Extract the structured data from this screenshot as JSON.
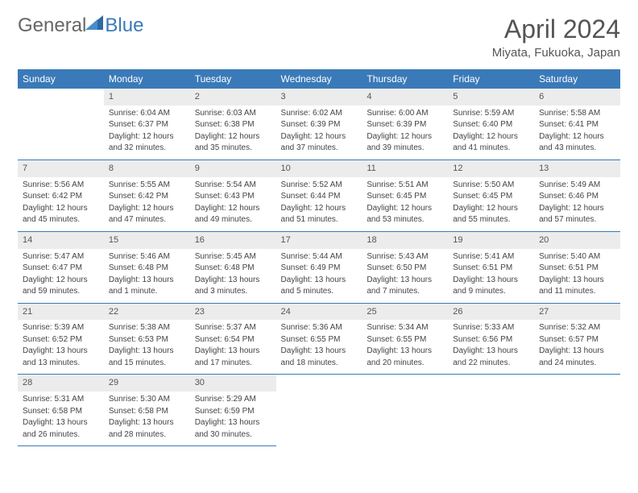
{
  "logo": {
    "part1": "General",
    "part2": "Blue"
  },
  "title": "April 2024",
  "location": "Miyata, Fukuoka, Japan",
  "colors": {
    "header_bg": "#3a7ab8",
    "header_text": "#ffffff",
    "daynum_bg": "#ececec",
    "border": "#3a7ab8",
    "text": "#444444",
    "title_text": "#555555"
  },
  "weekdays": [
    "Sunday",
    "Monday",
    "Tuesday",
    "Wednesday",
    "Thursday",
    "Friday",
    "Saturday"
  ],
  "weeks": [
    [
      null,
      {
        "n": "1",
        "sr": "Sunrise: 6:04 AM",
        "ss": "Sunset: 6:37 PM",
        "d1": "Daylight: 12 hours",
        "d2": "and 32 minutes."
      },
      {
        "n": "2",
        "sr": "Sunrise: 6:03 AM",
        "ss": "Sunset: 6:38 PM",
        "d1": "Daylight: 12 hours",
        "d2": "and 35 minutes."
      },
      {
        "n": "3",
        "sr": "Sunrise: 6:02 AM",
        "ss": "Sunset: 6:39 PM",
        "d1": "Daylight: 12 hours",
        "d2": "and 37 minutes."
      },
      {
        "n": "4",
        "sr": "Sunrise: 6:00 AM",
        "ss": "Sunset: 6:39 PM",
        "d1": "Daylight: 12 hours",
        "d2": "and 39 minutes."
      },
      {
        "n": "5",
        "sr": "Sunrise: 5:59 AM",
        "ss": "Sunset: 6:40 PM",
        "d1": "Daylight: 12 hours",
        "d2": "and 41 minutes."
      },
      {
        "n": "6",
        "sr": "Sunrise: 5:58 AM",
        "ss": "Sunset: 6:41 PM",
        "d1": "Daylight: 12 hours",
        "d2": "and 43 minutes."
      }
    ],
    [
      {
        "n": "7",
        "sr": "Sunrise: 5:56 AM",
        "ss": "Sunset: 6:42 PM",
        "d1": "Daylight: 12 hours",
        "d2": "and 45 minutes."
      },
      {
        "n": "8",
        "sr": "Sunrise: 5:55 AM",
        "ss": "Sunset: 6:42 PM",
        "d1": "Daylight: 12 hours",
        "d2": "and 47 minutes."
      },
      {
        "n": "9",
        "sr": "Sunrise: 5:54 AM",
        "ss": "Sunset: 6:43 PM",
        "d1": "Daylight: 12 hours",
        "d2": "and 49 minutes."
      },
      {
        "n": "10",
        "sr": "Sunrise: 5:52 AM",
        "ss": "Sunset: 6:44 PM",
        "d1": "Daylight: 12 hours",
        "d2": "and 51 minutes."
      },
      {
        "n": "11",
        "sr": "Sunrise: 5:51 AM",
        "ss": "Sunset: 6:45 PM",
        "d1": "Daylight: 12 hours",
        "d2": "and 53 minutes."
      },
      {
        "n": "12",
        "sr": "Sunrise: 5:50 AM",
        "ss": "Sunset: 6:45 PM",
        "d1": "Daylight: 12 hours",
        "d2": "and 55 minutes."
      },
      {
        "n": "13",
        "sr": "Sunrise: 5:49 AM",
        "ss": "Sunset: 6:46 PM",
        "d1": "Daylight: 12 hours",
        "d2": "and 57 minutes."
      }
    ],
    [
      {
        "n": "14",
        "sr": "Sunrise: 5:47 AM",
        "ss": "Sunset: 6:47 PM",
        "d1": "Daylight: 12 hours",
        "d2": "and 59 minutes."
      },
      {
        "n": "15",
        "sr": "Sunrise: 5:46 AM",
        "ss": "Sunset: 6:48 PM",
        "d1": "Daylight: 13 hours",
        "d2": "and 1 minute."
      },
      {
        "n": "16",
        "sr": "Sunrise: 5:45 AM",
        "ss": "Sunset: 6:48 PM",
        "d1": "Daylight: 13 hours",
        "d2": "and 3 minutes."
      },
      {
        "n": "17",
        "sr": "Sunrise: 5:44 AM",
        "ss": "Sunset: 6:49 PM",
        "d1": "Daylight: 13 hours",
        "d2": "and 5 minutes."
      },
      {
        "n": "18",
        "sr": "Sunrise: 5:43 AM",
        "ss": "Sunset: 6:50 PM",
        "d1": "Daylight: 13 hours",
        "d2": "and 7 minutes."
      },
      {
        "n": "19",
        "sr": "Sunrise: 5:41 AM",
        "ss": "Sunset: 6:51 PM",
        "d1": "Daylight: 13 hours",
        "d2": "and 9 minutes."
      },
      {
        "n": "20",
        "sr": "Sunrise: 5:40 AM",
        "ss": "Sunset: 6:51 PM",
        "d1": "Daylight: 13 hours",
        "d2": "and 11 minutes."
      }
    ],
    [
      {
        "n": "21",
        "sr": "Sunrise: 5:39 AM",
        "ss": "Sunset: 6:52 PM",
        "d1": "Daylight: 13 hours",
        "d2": "and 13 minutes."
      },
      {
        "n": "22",
        "sr": "Sunrise: 5:38 AM",
        "ss": "Sunset: 6:53 PM",
        "d1": "Daylight: 13 hours",
        "d2": "and 15 minutes."
      },
      {
        "n": "23",
        "sr": "Sunrise: 5:37 AM",
        "ss": "Sunset: 6:54 PM",
        "d1": "Daylight: 13 hours",
        "d2": "and 17 minutes."
      },
      {
        "n": "24",
        "sr": "Sunrise: 5:36 AM",
        "ss": "Sunset: 6:55 PM",
        "d1": "Daylight: 13 hours",
        "d2": "and 18 minutes."
      },
      {
        "n": "25",
        "sr": "Sunrise: 5:34 AM",
        "ss": "Sunset: 6:55 PM",
        "d1": "Daylight: 13 hours",
        "d2": "and 20 minutes."
      },
      {
        "n": "26",
        "sr": "Sunrise: 5:33 AM",
        "ss": "Sunset: 6:56 PM",
        "d1": "Daylight: 13 hours",
        "d2": "and 22 minutes."
      },
      {
        "n": "27",
        "sr": "Sunrise: 5:32 AM",
        "ss": "Sunset: 6:57 PM",
        "d1": "Daylight: 13 hours",
        "d2": "and 24 minutes."
      }
    ],
    [
      {
        "n": "28",
        "sr": "Sunrise: 5:31 AM",
        "ss": "Sunset: 6:58 PM",
        "d1": "Daylight: 13 hours",
        "d2": "and 26 minutes."
      },
      {
        "n": "29",
        "sr": "Sunrise: 5:30 AM",
        "ss": "Sunset: 6:58 PM",
        "d1": "Daylight: 13 hours",
        "d2": "and 28 minutes."
      },
      {
        "n": "30",
        "sr": "Sunrise: 5:29 AM",
        "ss": "Sunset: 6:59 PM",
        "d1": "Daylight: 13 hours",
        "d2": "and 30 minutes."
      },
      null,
      null,
      null,
      null
    ]
  ]
}
